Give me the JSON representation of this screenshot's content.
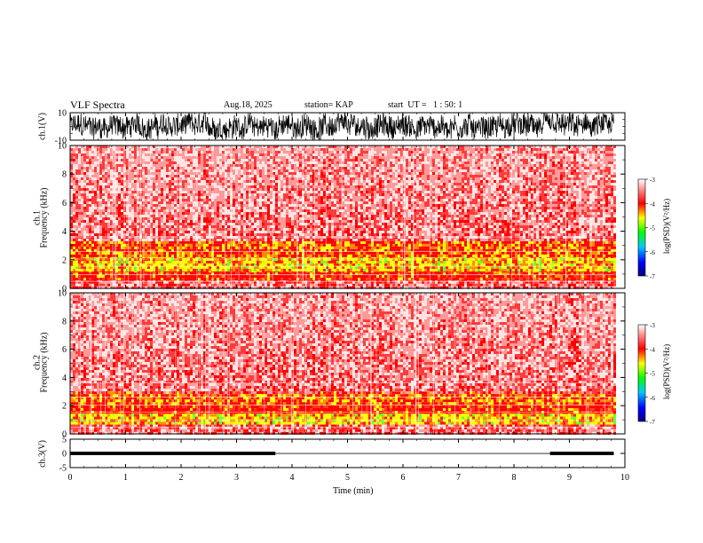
{
  "header": {
    "title": "VLF Spectra",
    "date": "Aug.18, 2025",
    "station": "station= KAP",
    "start": "start  UT =   1 : 50: 1"
  },
  "chart_data": [
    {
      "id": "ch1-waveform",
      "type": "line",
      "ylabel": "ch.1(V)",
      "ylim": [
        -10,
        10
      ],
      "yticks": [
        "10",
        "-10"
      ],
      "xlim": [
        0,
        9.8
      ],
      "description_values": "continuous noisy signal",
      "amplitude_range": [
        -8,
        8
      ]
    },
    {
      "id": "ch1-spectrogram",
      "type": "heatmap",
      "ylabel": "ch.1",
      "ylabel2": "Frequency (kHz)",
      "ylim": [
        0,
        10
      ],
      "yticks": [
        "0",
        "2",
        "4",
        "6",
        "8",
        "10"
      ],
      "xlim": [
        0,
        9.8
      ],
      "bands": [
        {
          "from": 0,
          "to": 0.7,
          "level": -3.4
        },
        {
          "from": 0.7,
          "to": 1.3,
          "level": -4.3
        },
        {
          "from": 1.3,
          "to": 2.3,
          "level": -4.6
        },
        {
          "from": 2.3,
          "to": 3.3,
          "level": -4.4
        },
        {
          "from": 3.3,
          "to": 10,
          "level": -3.5
        }
      ],
      "colorbar": {
        "label": "log(PSD)(V²/Hz)",
        "min": -7,
        "max": -3,
        "ticks": [
          "-3",
          "-4",
          "-5",
          "-6",
          "-7"
        ]
      }
    },
    {
      "id": "ch2-spectrogram",
      "type": "heatmap",
      "ylabel": "ch.2",
      "ylabel2": "Frequency (kHz)",
      "ylim": [
        0,
        10
      ],
      "yticks": [
        "0",
        "2",
        "4",
        "6",
        "8",
        "10"
      ],
      "xlim": [
        0,
        9.8
      ],
      "bands": [
        {
          "from": 0,
          "to": 0.7,
          "level": -3.4
        },
        {
          "from": 0.7,
          "to": 1.6,
          "level": -4.5
        },
        {
          "from": 1.6,
          "to": 2.2,
          "level": -4.2
        },
        {
          "from": 2.2,
          "to": 3.0,
          "level": -4.4
        },
        {
          "from": 3.0,
          "to": 10,
          "level": -3.4
        }
      ],
      "colorbar": {
        "label": "log(PSD)(V²/Hz)",
        "min": -7,
        "max": -3,
        "ticks": [
          "-3",
          "-4",
          "-5",
          "-6",
          "-7"
        ]
      }
    },
    {
      "id": "ch3-waveform",
      "type": "line",
      "ylabel": "ch.3(V)",
      "ylim": [
        -5,
        5
      ],
      "yticks": [
        "5",
        "0",
        "-5"
      ],
      "xlim": [
        0,
        9.8
      ],
      "segments": [
        {
          "from": 0,
          "to": 3.7,
          "center": 0,
          "amplitude": 0.6
        },
        {
          "from": 3.7,
          "to": 8.65,
          "center": 0,
          "amplitude": 0.1
        },
        {
          "from": 8.65,
          "to": 9.8,
          "center": 0,
          "amplitude": 0.6
        }
      ]
    }
  ],
  "xaxis": {
    "label": "Time (min)",
    "range": [
      0,
      10
    ],
    "ticks": [
      "0",
      "1",
      "2",
      "3",
      "4",
      "5",
      "6",
      "7",
      "8",
      "9",
      "10"
    ]
  }
}
